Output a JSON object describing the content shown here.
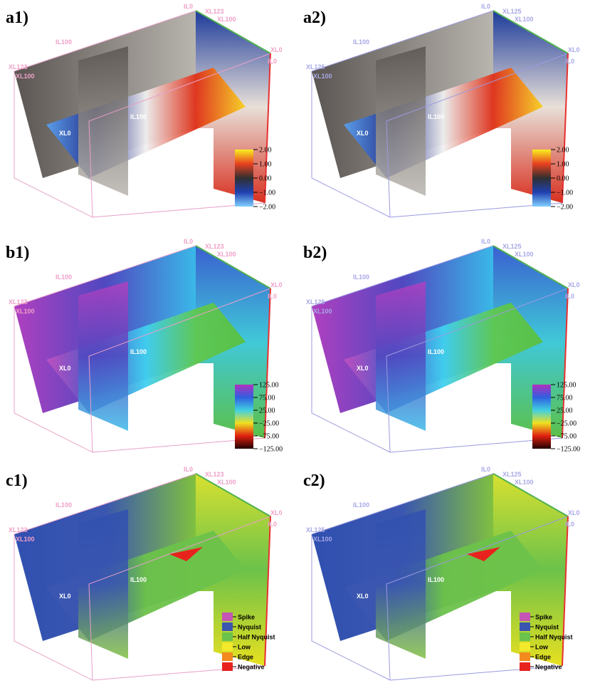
{
  "panels": [
    {
      "label": "a1)",
      "annotations": [
        "IL0",
        "XL123",
        "XL100",
        "IL100",
        "XL123",
        "XL100",
        "XL0",
        "IL0",
        "IL100",
        "XL0"
      ],
      "colorbar": [
        "2.00",
        "1.00",
        "0.00",
        "−1.00",
        "−2.00"
      ]
    },
    {
      "label": "a2)",
      "annotations": [
        "IL0",
        "XL125",
        "XL100",
        "IL100",
        "XL125",
        "XL100",
        "XL0",
        "IL0",
        "IL100",
        "XL0"
      ],
      "colorbar": [
        "2.00",
        "1.00",
        "0.00",
        "−1.00",
        "−2.00"
      ]
    },
    {
      "label": "b1)",
      "annotations": [
        "IL0",
        "XL123",
        "XL100",
        "IL100",
        "XL123",
        "XL100",
        "XL0",
        "IL0",
        "IL100",
        "XL0"
      ],
      "colorbar": [
        "125.00",
        "75.00",
        "25.00",
        "−25.00",
        "−75.00",
        "−125.00"
      ]
    },
    {
      "label": "b2)",
      "annotations": [
        "IL0",
        "XL125",
        "XL100",
        "IL100",
        "XL125",
        "XL100",
        "XL0",
        "IL0",
        "IL100",
        "XL0"
      ],
      "colorbar": [
        "125.00",
        "75.00",
        "25.00",
        "−25.00",
        "−75.00",
        "−125.00"
      ]
    },
    {
      "label": "c1)",
      "annotations": [
        "IL0",
        "XL123",
        "XL100",
        "IL100",
        "XL123",
        "XL100",
        "XL0",
        "IL0",
        "IL100",
        "XL0"
      ],
      "legend": [
        {
          "label": "Spike",
          "color": "#c455b5"
        },
        {
          "label": "Nyquist",
          "color": "#3a56b0"
        },
        {
          "label": "Half Nyquist",
          "color": "#6cc24a"
        },
        {
          "label": "Low",
          "color": "#f2ea2a"
        },
        {
          "label": "Edge",
          "color": "#f28a1e"
        },
        {
          "label": "Negative",
          "color": "#e8231e"
        }
      ]
    },
    {
      "label": "c2)",
      "annotations": [
        "IL0",
        "XL125",
        "XL100",
        "IL100",
        "XL125",
        "XL100",
        "XL0",
        "IL0",
        "IL100",
        "XL0"
      ],
      "legend": [
        {
          "label": "Spike",
          "color": "#c455b5"
        },
        {
          "label": "Nyquist",
          "color": "#3a56b0"
        },
        {
          "label": "Half Nyquist",
          "color": "#6cc24a"
        },
        {
          "label": "Low",
          "color": "#f2ea2a"
        },
        {
          "label": "Edge",
          "color": "#f28a1e"
        },
        {
          "label": "Negative",
          "color": "#e8231e"
        }
      ]
    }
  ]
}
